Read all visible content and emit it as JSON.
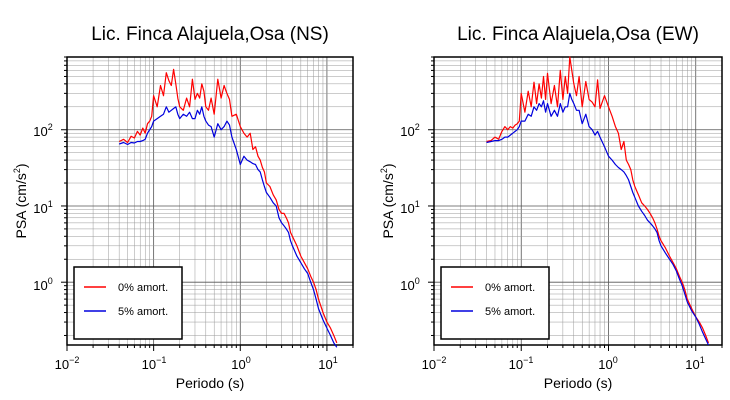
{
  "chart_data": [
    {
      "type": "line",
      "title": "Lic. Finca Alajuela,Osa (NS)",
      "xlabel": "Periodo (s)",
      "ylabel": "PSA (cm/s2)",
      "ylabel_main": "PSA (cm/s",
      "ylabel_sup": "2",
      "ylabel_close": ")",
      "xscale": "log",
      "yscale": "log",
      "xlim": [
        0.01,
        20
      ],
      "ylim": [
        0.15,
        900
      ],
      "grid": true,
      "legend": {
        "position": "bottom-left",
        "items": [
          "0% amort.",
          "5% amort."
        ]
      },
      "xticks": [
        {
          "base": "10",
          "exp": "−2"
        },
        {
          "base": "10",
          "exp": "−1"
        },
        {
          "base": "10",
          "exp": "0"
        },
        {
          "base": "10",
          "exp": "1"
        }
      ],
      "yticks": [
        {
          "base": "10",
          "exp": "0"
        },
        {
          "base": "10",
          "exp": "1"
        },
        {
          "base": "10",
          "exp": "2"
        }
      ],
      "series": [
        {
          "name": "0% amort.",
          "color": "#ff0000",
          "x": [
            0.04,
            0.045,
            0.05,
            0.055,
            0.06,
            0.065,
            0.07,
            0.075,
            0.08,
            0.085,
            0.09,
            0.095,
            0.1,
            0.11,
            0.12,
            0.13,
            0.14,
            0.15,
            0.16,
            0.17,
            0.18,
            0.19,
            0.2,
            0.22,
            0.24,
            0.26,
            0.28,
            0.3,
            0.32,
            0.34,
            0.36,
            0.38,
            0.4,
            0.43,
            0.46,
            0.5,
            0.55,
            0.6,
            0.65,
            0.7,
            0.75,
            0.8,
            0.9,
            1.0,
            1.1,
            1.2,
            1.3,
            1.4,
            1.5,
            1.6,
            1.7,
            1.8,
            1.9,
            2.0,
            2.2,
            2.4,
            2.6,
            2.8,
            3.0,
            3.2,
            3.4,
            3.6,
            3.8,
            4.0,
            4.5,
            5,
            5.5,
            6,
            6.5,
            7,
            7.5,
            8,
            9,
            10,
            11,
            12,
            13
          ],
          "y": [
            70,
            75,
            68,
            82,
            78,
            95,
            85,
            105,
            90,
            120,
            130,
            150,
            280,
            200,
            380,
            280,
            560,
            440,
            380,
            620,
            400,
            260,
            200,
            180,
            260,
            200,
            460,
            250,
            300,
            260,
            400,
            320,
            200,
            180,
            260,
            160,
            460,
            260,
            380,
            300,
            250,
            150,
            160,
            110,
            90,
            80,
            90,
            55,
            60,
            45,
            40,
            32,
            28,
            20,
            18,
            14,
            12,
            9,
            8,
            8,
            7,
            6,
            4.5,
            4,
            3,
            2.2,
            1.8,
            1.5,
            1.2,
            1.0,
            0.8,
            0.6,
            0.4,
            0.3,
            0.25,
            0.2,
            0.16
          ]
        },
        {
          "name": "5% amort.",
          "color": "#0000dd",
          "x": [
            0.04,
            0.045,
            0.05,
            0.055,
            0.06,
            0.065,
            0.07,
            0.075,
            0.08,
            0.085,
            0.09,
            0.095,
            0.1,
            0.11,
            0.12,
            0.13,
            0.14,
            0.15,
            0.16,
            0.17,
            0.18,
            0.19,
            0.2,
            0.22,
            0.24,
            0.26,
            0.28,
            0.3,
            0.32,
            0.34,
            0.36,
            0.38,
            0.4,
            0.43,
            0.46,
            0.5,
            0.55,
            0.6,
            0.65,
            0.7,
            0.75,
            0.8,
            0.9,
            1.0,
            1.1,
            1.2,
            1.3,
            1.4,
            1.5,
            1.6,
            1.7,
            1.8,
            1.9,
            2.0,
            2.2,
            2.4,
            2.6,
            2.8,
            3.0,
            3.2,
            3.4,
            3.6,
            3.8,
            4.0,
            4.5,
            5,
            5.5,
            6,
            6.5,
            7,
            7.5,
            8,
            9,
            10,
            11,
            12,
            13
          ],
          "y": [
            65,
            68,
            64,
            68,
            67,
            70,
            70,
            72,
            75,
            90,
            100,
            110,
            130,
            140,
            150,
            160,
            200,
            170,
            180,
            190,
            200,
            160,
            140,
            160,
            150,
            170,
            140,
            140,
            180,
            160,
            200,
            150,
            130,
            115,
            110,
            80,
            120,
            100,
            110,
            130,
            115,
            80,
            55,
            35,
            45,
            40,
            38,
            36,
            35,
            30,
            28,
            22,
            18,
            15,
            13,
            11,
            10,
            7,
            6,
            5.5,
            5,
            4.5,
            3.5,
            3,
            2.2,
            1.8,
            1.5,
            1.3,
            1.0,
            0.8,
            0.6,
            0.45,
            0.32,
            0.25,
            0.2,
            0.16,
            0.14
          ]
        }
      ]
    },
    {
      "type": "line",
      "title": "Lic. Finca Alajuela,Osa (EW)",
      "xlabel": "Periodo (s)",
      "ylabel": "PSA (cm/s2)",
      "ylabel_main": "PSA (cm/s",
      "ylabel_sup": "2",
      "ylabel_close": ")",
      "xscale": "log",
      "yscale": "log",
      "xlim": [
        0.01,
        20
      ],
      "ylim": [
        0.15,
        900
      ],
      "grid": true,
      "legend": {
        "position": "bottom-left",
        "items": [
          "0% amort.",
          "5% amort."
        ]
      },
      "xticks": [
        {
          "base": "10",
          "exp": "−2"
        },
        {
          "base": "10",
          "exp": "−1"
        },
        {
          "base": "10",
          "exp": "0"
        },
        {
          "base": "10",
          "exp": "1"
        }
      ],
      "yticks": [
        {
          "base": "10",
          "exp": "0"
        },
        {
          "base": "10",
          "exp": "1"
        },
        {
          "base": "10",
          "exp": "2"
        }
      ],
      "series": [
        {
          "name": "0% amort.",
          "color": "#ff0000",
          "x": [
            0.04,
            0.045,
            0.05,
            0.055,
            0.06,
            0.065,
            0.07,
            0.075,
            0.08,
            0.085,
            0.09,
            0.095,
            0.1,
            0.11,
            0.12,
            0.13,
            0.14,
            0.15,
            0.16,
            0.17,
            0.18,
            0.19,
            0.2,
            0.22,
            0.24,
            0.26,
            0.28,
            0.3,
            0.32,
            0.34,
            0.36,
            0.38,
            0.4,
            0.43,
            0.46,
            0.5,
            0.55,
            0.6,
            0.65,
            0.7,
            0.75,
            0.8,
            0.9,
            1.0,
            1.1,
            1.2,
            1.3,
            1.4,
            1.5,
            1.6,
            1.7,
            1.8,
            1.9,
            2.0,
            2.2,
            2.4,
            2.6,
            2.8,
            3.0,
            3.2,
            3.4,
            3.6,
            3.8,
            4.0,
            4.5,
            5,
            5.5,
            6,
            6.5,
            7,
            7.5,
            8,
            9,
            10,
            11,
            12,
            13,
            14
          ],
          "y": [
            70,
            72,
            80,
            75,
            95,
            110,
            100,
            110,
            105,
            115,
            120,
            130,
            300,
            170,
            320,
            200,
            420,
            220,
            400,
            260,
            500,
            250,
            550,
            220,
            380,
            200,
            600,
            250,
            500,
            300,
            900,
            600,
            400,
            280,
            500,
            200,
            430,
            250,
            230,
            200,
            450,
            190,
            280,
            200,
            150,
            110,
            90,
            55,
            70,
            40,
            35,
            30,
            22,
            18,
            14,
            11,
            10,
            9,
            8,
            7,
            6,
            5,
            4,
            3.5,
            2.8,
            2.2,
            1.8,
            1.5,
            1.2,
            1.0,
            0.8,
            0.6,
            0.45,
            0.35,
            0.3,
            0.25,
            0.2,
            0.16
          ]
        },
        {
          "name": "5% amort.",
          "color": "#0000dd",
          "x": [
            0.04,
            0.045,
            0.05,
            0.055,
            0.06,
            0.065,
            0.07,
            0.075,
            0.08,
            0.085,
            0.09,
            0.095,
            0.1,
            0.11,
            0.12,
            0.13,
            0.14,
            0.15,
            0.16,
            0.17,
            0.18,
            0.19,
            0.2,
            0.22,
            0.24,
            0.26,
            0.28,
            0.3,
            0.32,
            0.34,
            0.36,
            0.38,
            0.4,
            0.43,
            0.46,
            0.5,
            0.55,
            0.6,
            0.65,
            0.7,
            0.75,
            0.8,
            0.9,
            1.0,
            1.1,
            1.2,
            1.3,
            1.4,
            1.5,
            1.6,
            1.7,
            1.8,
            1.9,
            2.0,
            2.2,
            2.4,
            2.6,
            2.8,
            3.0,
            3.2,
            3.4,
            3.6,
            3.8,
            4.0,
            4.5,
            5,
            5.5,
            6,
            6.5,
            7,
            7.5,
            8,
            9,
            10,
            11,
            12,
            13,
            14
          ],
          "y": [
            68,
            70,
            72,
            72,
            75,
            80,
            80,
            85,
            90,
            95,
            100,
            110,
            130,
            130,
            160,
            150,
            200,
            180,
            220,
            200,
            240,
            170,
            220,
            150,
            180,
            150,
            220,
            170,
            200,
            200,
            300,
            250,
            220,
            180,
            180,
            120,
            160,
            110,
            100,
            85,
            95,
            80,
            60,
            45,
            40,
            35,
            32,
            30,
            28,
            25,
            22,
            18,
            15,
            13,
            10,
            8.5,
            7.5,
            6.5,
            6,
            5.5,
            5,
            4.5,
            3.5,
            3,
            2.4,
            2,
            1.7,
            1.4,
            1.1,
            0.9,
            0.7,
            0.55,
            0.42,
            0.35,
            0.28,
            0.22,
            0.18,
            0.15
          ]
        }
      ]
    }
  ]
}
